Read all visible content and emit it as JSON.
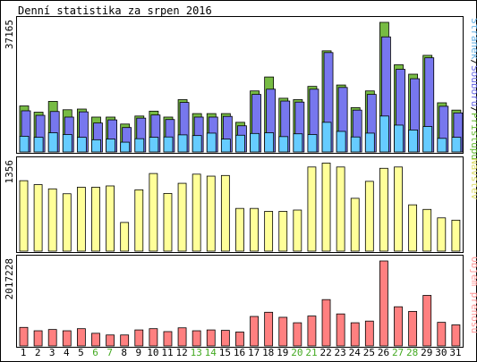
{
  "chart_data": {
    "type": "bar",
    "title": "Denní statistika za srpen 2016",
    "categories": [
      "1",
      "2",
      "3",
      "4",
      "5",
      "6",
      "7",
      "8",
      "9",
      "10",
      "11",
      "12",
      "13",
      "14",
      "15",
      "16",
      "17",
      "18",
      "19",
      "20",
      "21",
      "22",
      "23",
      "24",
      "25",
      "26",
      "27",
      "28",
      "29",
      "30",
      "31"
    ],
    "weekend_days": [
      "6",
      "7",
      "13",
      "14",
      "20",
      "21",
      "27",
      "28"
    ],
    "panels": [
      {
        "id": "visits-panel",
        "ymax_label": "37165",
        "ymax": 37165,
        "legend": {
          "parts": [
            "Stránek",
            "/",
            "Souborů",
            "/",
            "Přístupů"
          ],
          "colors": [
            "#66b2e6",
            "#000000",
            "#6a6ae6",
            "#000000",
            "#66bb33"
          ]
        },
        "series": [
          {
            "name": "Přístupů",
            "color": "#77bb44",
            "values": [
              13200,
              11400,
              14500,
              12100,
              12300,
              10000,
              10000,
              8000,
              10300,
              11700,
              10000,
              15000,
              11000,
              11000,
              11000,
              8500,
              17500,
              21500,
              15400,
              15000,
              18800,
              29000,
              19200,
              12700,
              17500,
              37165,
              25000,
              22300,
              27700,
              14100,
              12000
            ]
          },
          {
            "name": "Souborů",
            "color": "#7777ee",
            "values": [
              11800,
              10500,
              11600,
              10000,
              11500,
              8300,
              9200,
              7000,
              9700,
              10600,
              9300,
              14200,
              10000,
              10000,
              10200,
              7500,
              16500,
              18000,
              14600,
              14300,
              18000,
              28500,
              18500,
              12000,
              16500,
              33000,
              23700,
              21000,
              27000,
              13100,
              11200
            ]
          },
          {
            "name": "Stránek",
            "color": "#66ccff",
            "values": [
              4500,
              4200,
              5500,
              5000,
              4200,
              3500,
              3700,
              2800,
              3800,
              4200,
              4300,
              4900,
              4700,
              5400,
              3700,
              4800,
              5300,
              5500,
              4400,
              5200,
              5000,
              8500,
              5900,
              4300,
              5400,
              10300,
              7700,
              6300,
              7300,
              3900,
              4200
            ]
          }
        ]
      },
      {
        "id": "visitors-panel",
        "ymax_label": "1356",
        "ymax": 1356,
        "legend": {
          "parts": [
            "Návštěv"
          ],
          "colors": [
            "#dddd66"
          ]
        },
        "series": [
          {
            "name": "Návštěv",
            "color": "#ffff99",
            "values": [
              1080,
              1020,
              955,
              880,
              980,
              980,
              1000,
              440,
              940,
              1190,
              885,
              1040,
              1180,
              1150,
              1160,
              655,
              655,
              610,
              610,
              630,
              1290,
              1350,
              1290,
              810,
              1070,
              1270,
              1290,
              710,
              640,
              510,
              475
            ]
          }
        ]
      },
      {
        "id": "transfer-panel",
        "ymax_label": "2017228",
        "ymax": 2017228,
        "legend": {
          "parts": [
            "Objem přenosu"
          ],
          "colors": [
            "#ff9999"
          ]
        },
        "series": [
          {
            "name": "Objem přenosu",
            "color": "#ff8080",
            "values": [
              440000,
              360000,
              390000,
              360000,
              410000,
              300000,
              260000,
              260000,
              380000,
              410000,
              340000,
              430000,
              360000,
              380000,
              370000,
              330000,
              700000,
              800000,
              680000,
              550000,
              710000,
              1100000,
              760000,
              550000,
              590000,
              2017228,
              930000,
              820000,
              1200000,
              560000,
              500000
            ]
          }
        ]
      }
    ]
  }
}
